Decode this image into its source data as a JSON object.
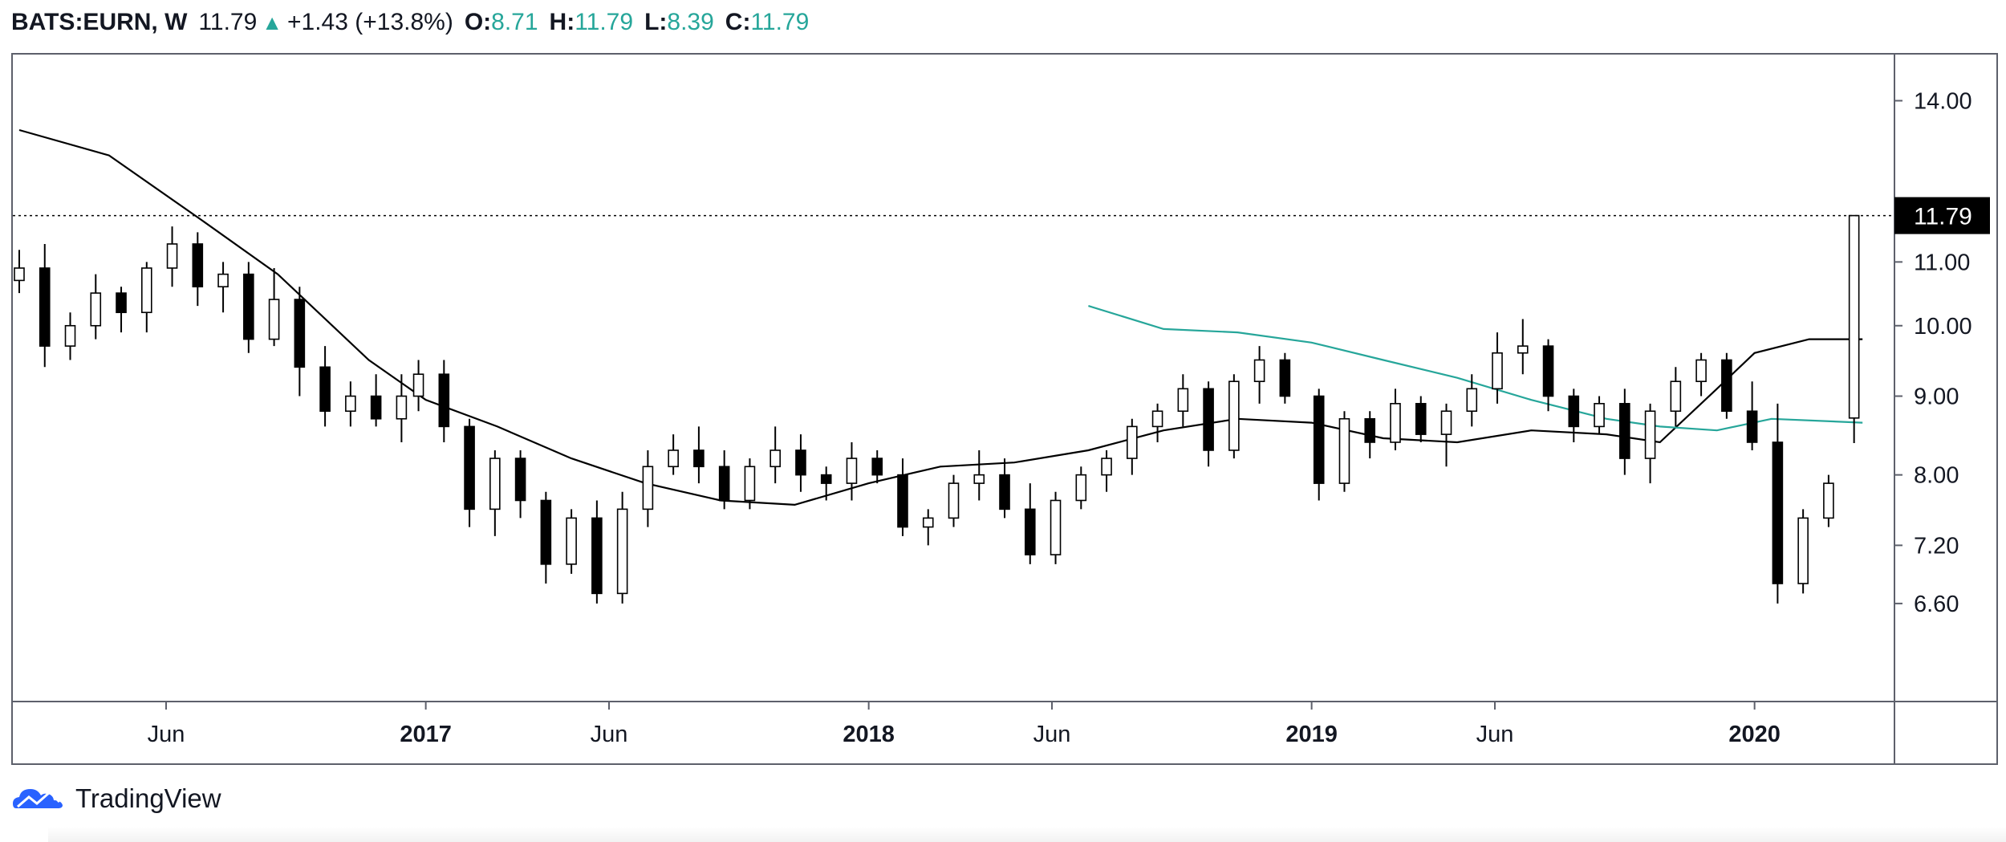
{
  "header": {
    "symbol": "BATS:EURN, W",
    "last": "11.79",
    "change": "+1.43 (+13.8%)",
    "open_label": "O:",
    "open": "8.71",
    "high_label": "H:",
    "high": "11.79",
    "low_label": "L:",
    "low": "8.39",
    "close_label": "C:",
    "close": "11.79",
    "up_icon": "triangle-up-icon"
  },
  "footer": {
    "brand": "TradingView",
    "logo_icon": "tradingview-cloud-logo-icon"
  },
  "colors": {
    "up": "#ffffff",
    "down": "#000000",
    "sma_long": "#000000",
    "sma_medium": "#26a69a",
    "price_tag_bg": "#000000",
    "price_tag_text": "#ffffff",
    "axis": "#5d606b",
    "text": "#131722"
  },
  "chart_data": {
    "type": "candlestick",
    "symbol": "BATS:EURN",
    "interval": "W",
    "y_scale": "log",
    "ylim": [
      5.7,
      15.0
    ],
    "y_ticks": [
      6.6,
      7.2,
      8.0,
      9.0,
      10.0,
      11.0,
      14.0
    ],
    "y_tick_labels": [
      "6.60",
      "7.20",
      "8.00",
      "9.00",
      "10.00",
      "11.00",
      "14.00"
    ],
    "xlim": [
      "2016-02-01",
      "2020-04-20"
    ],
    "x_ticks": [
      {
        "date": "2016-06-01",
        "label": "Jun",
        "bold": false
      },
      {
        "date": "2017-01-01",
        "label": "2017",
        "bold": true
      },
      {
        "date": "2017-06-01",
        "label": "Jun",
        "bold": false
      },
      {
        "date": "2018-01-01",
        "label": "2018",
        "bold": true
      },
      {
        "date": "2018-06-01",
        "label": "Jun",
        "bold": false
      },
      {
        "date": "2019-01-01",
        "label": "2019",
        "bold": true
      },
      {
        "date": "2019-06-01",
        "label": "Jun",
        "bold": false
      },
      {
        "date": "2020-01-01",
        "label": "2020",
        "bold": true
      }
    ],
    "last_price": 11.79,
    "last_price_label": "11.79",
    "grid": false,
    "candles": [
      [
        "2016-02-01",
        10.7,
        11.2,
        10.5,
        10.9
      ],
      [
        "2016-02-22",
        10.9,
        11.3,
        9.4,
        9.7
      ],
      [
        "2016-03-14",
        9.7,
        10.2,
        9.5,
        10.0
      ],
      [
        "2016-04-04",
        10.0,
        10.8,
        9.8,
        10.5
      ],
      [
        "2016-04-25",
        10.5,
        10.6,
        9.9,
        10.2
      ],
      [
        "2016-05-16",
        10.2,
        11.0,
        9.9,
        10.9
      ],
      [
        "2016-06-06",
        10.9,
        11.6,
        10.6,
        11.3
      ],
      [
        "2016-06-27",
        11.3,
        11.5,
        10.3,
        10.6
      ],
      [
        "2016-07-18",
        10.6,
        11.0,
        10.2,
        10.8
      ],
      [
        "2016-08-08",
        10.8,
        11.0,
        9.6,
        9.8
      ],
      [
        "2016-08-29",
        9.8,
        10.9,
        9.7,
        10.4
      ],
      [
        "2016-09-19",
        10.4,
        10.6,
        9.0,
        9.4
      ],
      [
        "2016-10-10",
        9.4,
        9.7,
        8.6,
        8.8
      ],
      [
        "2016-10-31",
        8.8,
        9.2,
        8.6,
        9.0
      ],
      [
        "2016-11-21",
        9.0,
        9.3,
        8.6,
        8.7
      ],
      [
        "2016-12-12",
        8.7,
        9.3,
        8.4,
        9.0
      ],
      [
        "2016-12-26",
        9.0,
        9.5,
        8.8,
        9.3
      ],
      [
        "2017-01-16",
        9.3,
        9.5,
        8.4,
        8.6
      ],
      [
        "2017-02-06",
        8.6,
        8.7,
        7.4,
        7.6
      ],
      [
        "2017-02-27",
        7.6,
        8.3,
        7.3,
        8.2
      ],
      [
        "2017-03-20",
        8.2,
        8.3,
        7.5,
        7.7
      ],
      [
        "2017-04-10",
        7.7,
        7.8,
        6.8,
        7.0
      ],
      [
        "2017-05-01",
        7.0,
        7.6,
        6.9,
        7.5
      ],
      [
        "2017-05-22",
        7.5,
        7.7,
        6.6,
        6.7
      ],
      [
        "2017-06-12",
        6.7,
        7.8,
        6.6,
        7.6
      ],
      [
        "2017-07-03",
        7.6,
        8.3,
        7.4,
        8.1
      ],
      [
        "2017-07-24",
        8.1,
        8.5,
        8.0,
        8.3
      ],
      [
        "2017-08-14",
        8.3,
        8.6,
        7.9,
        8.1
      ],
      [
        "2017-09-04",
        8.1,
        8.3,
        7.6,
        7.7
      ],
      [
        "2017-09-25",
        7.7,
        8.2,
        7.6,
        8.1
      ],
      [
        "2017-10-16",
        8.1,
        8.6,
        7.9,
        8.3
      ],
      [
        "2017-11-06",
        8.3,
        8.5,
        7.8,
        8.0
      ],
      [
        "2017-11-27",
        8.0,
        8.1,
        7.7,
        7.9
      ],
      [
        "2017-12-18",
        7.9,
        8.4,
        7.7,
        8.2
      ],
      [
        "2018-01-08",
        8.2,
        8.3,
        7.9,
        8.0
      ],
      [
        "2018-01-29",
        8.0,
        8.2,
        7.3,
        7.4
      ],
      [
        "2018-02-19",
        7.4,
        7.6,
        7.2,
        7.5
      ],
      [
        "2018-03-12",
        7.5,
        8.0,
        7.4,
        7.9
      ],
      [
        "2018-04-02",
        7.9,
        8.3,
        7.7,
        8.0
      ],
      [
        "2018-04-23",
        8.0,
        8.2,
        7.5,
        7.6
      ],
      [
        "2018-05-14",
        7.6,
        7.9,
        7.0,
        7.1
      ],
      [
        "2018-06-04",
        7.1,
        7.8,
        7.0,
        7.7
      ],
      [
        "2018-06-25",
        7.7,
        8.1,
        7.6,
        8.0
      ],
      [
        "2018-07-16",
        8.0,
        8.3,
        7.8,
        8.2
      ],
      [
        "2018-08-06",
        8.2,
        8.7,
        8.0,
        8.6
      ],
      [
        "2018-08-27",
        8.6,
        8.9,
        8.4,
        8.8
      ],
      [
        "2018-09-17",
        8.8,
        9.3,
        8.6,
        9.1
      ],
      [
        "2018-10-08",
        9.1,
        9.2,
        8.1,
        8.3
      ],
      [
        "2018-10-29",
        8.3,
        9.3,
        8.2,
        9.2
      ],
      [
        "2018-11-19",
        9.2,
        9.7,
        8.9,
        9.5
      ],
      [
        "2018-12-10",
        9.5,
        9.6,
        8.9,
        9.0
      ],
      [
        "2019-01-07",
        9.0,
        9.1,
        7.7,
        7.9
      ],
      [
        "2019-01-28",
        7.9,
        8.8,
        7.8,
        8.7
      ],
      [
        "2019-02-18",
        8.7,
        8.8,
        8.2,
        8.4
      ],
      [
        "2019-03-11",
        8.4,
        9.1,
        8.3,
        8.9
      ],
      [
        "2019-04-01",
        8.9,
        9.0,
        8.4,
        8.5
      ],
      [
        "2019-04-22",
        8.5,
        8.9,
        8.1,
        8.8
      ],
      [
        "2019-05-13",
        8.8,
        9.3,
        8.6,
        9.1
      ],
      [
        "2019-06-03",
        9.1,
        9.9,
        8.9,
        9.6
      ],
      [
        "2019-06-24",
        9.6,
        10.1,
        9.3,
        9.7
      ],
      [
        "2019-07-15",
        9.7,
        9.8,
        8.8,
        9.0
      ],
      [
        "2019-08-05",
        9.0,
        9.1,
        8.4,
        8.6
      ],
      [
        "2019-08-26",
        8.6,
        9.0,
        8.5,
        8.9
      ],
      [
        "2019-09-16",
        8.9,
        9.1,
        8.0,
        8.2
      ],
      [
        "2019-10-07",
        8.2,
        8.9,
        7.9,
        8.8
      ],
      [
        "2019-10-28",
        8.8,
        9.4,
        8.6,
        9.2
      ],
      [
        "2019-11-18",
        9.2,
        9.6,
        9.0,
        9.5
      ],
      [
        "2019-12-09",
        9.5,
        9.6,
        8.7,
        8.8
      ],
      [
        "2019-12-30",
        8.8,
        9.2,
        8.3,
        8.4
      ],
      [
        "2020-01-20",
        8.4,
        8.9,
        6.6,
        6.8
      ],
      [
        "2020-02-10",
        6.8,
        7.6,
        6.7,
        7.5
      ],
      [
        "2020-03-02",
        7.5,
        8.0,
        7.4,
        7.9
      ]
    ],
    "series": [
      {
        "name": "",
        "color": "#000000",
        "points": [
          [
            "2016-02-01",
            13.4
          ],
          [
            "2016-04-15",
            12.9
          ],
          [
            "2016-07-01",
            11.7
          ],
          [
            "2016-09-01",
            10.8
          ],
          [
            "2016-11-15",
            9.5
          ],
          [
            "2017-01-01",
            8.95
          ],
          [
            "2017-03-01",
            8.6
          ],
          [
            "2017-05-01",
            8.2
          ],
          [
            "2017-07-01",
            7.9
          ],
          [
            "2017-09-01",
            7.7
          ],
          [
            "2017-11-01",
            7.65
          ],
          [
            "2018-01-01",
            7.9
          ],
          [
            "2018-03-01",
            8.1
          ],
          [
            "2018-05-01",
            8.15
          ],
          [
            "2018-07-01",
            8.3
          ],
          [
            "2018-09-01",
            8.55
          ],
          [
            "2018-11-01",
            8.7
          ],
          [
            "2019-01-01",
            8.65
          ],
          [
            "2019-03-01",
            8.45
          ],
          [
            "2019-05-01",
            8.4
          ],
          [
            "2019-07-01",
            8.55
          ],
          [
            "2019-09-01",
            8.5
          ],
          [
            "2019-10-15",
            8.4
          ],
          [
            "2019-12-01",
            9.1
          ],
          [
            "2020-01-01",
            9.6
          ],
          [
            "2020-02-15",
            9.8
          ],
          [
            "2020-03-30",
            9.8
          ]
        ]
      },
      {
        "name": "",
        "color": "#26a69a",
        "points": [
          [
            "2018-07-01",
            10.3
          ],
          [
            "2018-09-01",
            9.95
          ],
          [
            "2018-11-01",
            9.9
          ],
          [
            "2019-01-01",
            9.75
          ],
          [
            "2019-03-01",
            9.5
          ],
          [
            "2019-05-01",
            9.25
          ],
          [
            "2019-07-01",
            8.95
          ],
          [
            "2019-09-01",
            8.7
          ],
          [
            "2019-10-15",
            8.6
          ],
          [
            "2019-12-01",
            8.55
          ],
          [
            "2020-01-15",
            8.7
          ],
          [
            "2020-03-30",
            8.65
          ]
        ]
      }
    ]
  }
}
